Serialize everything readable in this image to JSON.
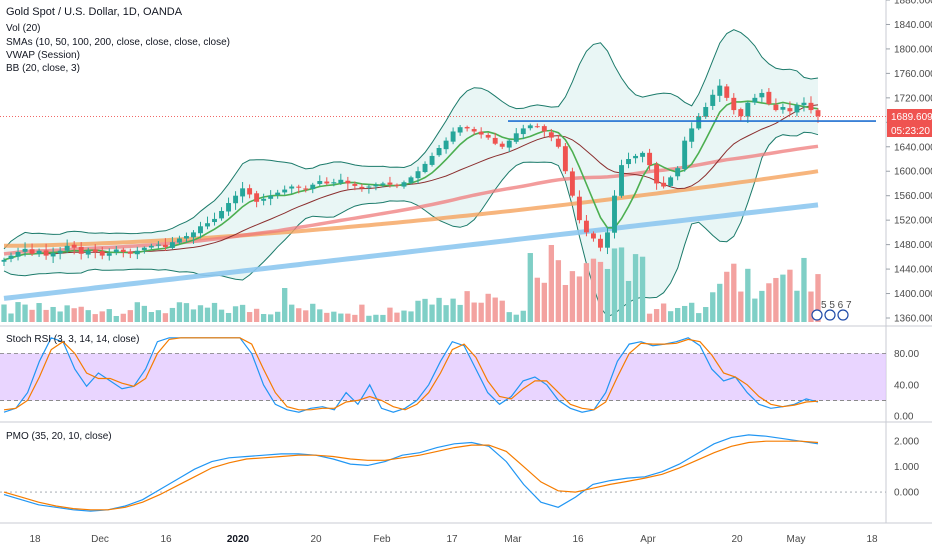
{
  "legend": {
    "title": "Gold Spot / U.S. Dollar, 1D, OANDA",
    "vol": "Vol (20)",
    "smas": "SMAs (10, 50, 100, 200, close, close, close, close)",
    "vwap": "VWAP (Session)",
    "bb": "BB (20, close, 3)"
  },
  "price_tag": {
    "value": "1689.609",
    "countdown": "05:23:20"
  },
  "events_label": "5 5 6 7",
  "rsi_pane": {
    "title": "Stoch RSI (3, 3, 14, 14, close)"
  },
  "pmo_pane": {
    "title": "PMO (35, 20, 10, close)"
  },
  "colors": {
    "up": "#26a69a",
    "down": "#ef5350",
    "bb": "#1b7a6a",
    "sma10": "#4caf50",
    "sma50": "#8b2f2f",
    "sma100": "#ef7b7b",
    "sma200": "#f5a25c",
    "vwap": "#8ec8f0",
    "resistance": "#1f6fd1",
    "rsi_band": "#e1c7ff",
    "k_line": "#2196f3",
    "d_line": "#f57c00"
  },
  "chart_data": [
    {
      "type": "candlestick",
      "title": "Gold Spot / U.S. Dollar, 1D, OANDA",
      "ylim": [
        1360,
        1880
      ],
      "y_ticks": [
        "1880.000",
        "1840.000",
        "1800.000",
        "1760.000",
        "1720.000",
        "1680.000",
        "1640.000",
        "1600.000",
        "1560.000",
        "1520.000",
        "1480.000",
        "1440.000",
        "1400.000",
        "1360.000"
      ],
      "x_ticks": [
        "18",
        "Dec",
        "16",
        "2020",
        "20",
        "Feb",
        "17",
        "Mar",
        "16",
        "Apr",
        "20",
        "May",
        "18"
      ],
      "resistance_level": 1682,
      "last_price": 1689.609,
      "close_path": [
        1455,
        1462,
        1468,
        1473,
        1465,
        1470,
        1462,
        1466,
        1470,
        1478,
        1475,
        1465,
        1470,
        1468,
        1462,
        1466,
        1472,
        1468,
        1465,
        1470,
        1475,
        1478,
        1480,
        1476,
        1484,
        1490,
        1494,
        1500,
        1510,
        1515,
        1522,
        1535,
        1548,
        1560,
        1572,
        1562,
        1550,
        1555,
        1560,
        1565,
        1570,
        1575,
        1573,
        1570,
        1578,
        1584,
        1580,
        1582,
        1586,
        1580,
        1576,
        1572,
        1575,
        1578,
        1580,
        1578,
        1576,
        1582,
        1590,
        1600,
        1612,
        1625,
        1638,
        1650,
        1665,
        1672,
        1670,
        1665,
        1660,
        1655,
        1645,
        1640,
        1650,
        1662,
        1670,
        1675,
        1673,
        1665,
        1655,
        1640,
        1600,
        1560,
        1520,
        1500,
        1490,
        1475,
        1500,
        1560,
        1610,
        1620,
        1625,
        1630,
        1610,
        1580,
        1575,
        1590,
        1605,
        1650,
        1670,
        1690,
        1705,
        1725,
        1740,
        1720,
        1700,
        1690,
        1712,
        1720,
        1728,
        1710,
        1700,
        1705,
        1698,
        1708,
        1712,
        1700,
        1690
      ]
    },
    {
      "type": "line",
      "title": "Stoch RSI (3, 3, 14, 14, close)",
      "ylim": [
        -5,
        110
      ],
      "y_ticks": [
        "80.00",
        "40.00",
        "0.00"
      ],
      "band": [
        20,
        80
      ],
      "k_path": [
        5,
        10,
        30,
        70,
        100,
        95,
        60,
        38,
        55,
        45,
        35,
        38,
        60,
        95,
        100,
        100,
        100,
        100,
        100,
        100,
        100,
        80,
        40,
        15,
        8,
        5,
        10,
        12,
        8,
        30,
        15,
        40,
        10,
        5,
        10,
        20,
        40,
        70,
        95,
        90,
        60,
        30,
        15,
        25,
        45,
        50,
        40,
        20,
        10,
        5,
        8,
        30,
        70,
        92,
        95,
        90,
        92,
        95,
        100,
        90,
        60,
        45,
        50,
        30,
        15,
        10,
        12,
        15,
        22,
        18
      ],
      "d_path": [
        8,
        10,
        20,
        50,
        85,
        95,
        80,
        55,
        48,
        48,
        42,
        38,
        48,
        80,
        98,
        100,
        100,
        100,
        100,
        100,
        100,
        92,
        60,
        30,
        12,
        8,
        8,
        10,
        10,
        18,
        20,
        25,
        20,
        12,
        8,
        15,
        30,
        55,
        85,
        92,
        75,
        45,
        25,
        22,
        35,
        45,
        45,
        30,
        15,
        10,
        8,
        18,
        50,
        80,
        93,
        92,
        92,
        93,
        98,
        95,
        78,
        55,
        50,
        40,
        25,
        15,
        12,
        14,
        18,
        19
      ]
    },
    {
      "type": "line",
      "title": "PMO (35, 20, 10, close)",
      "ylim": [
        -1.1,
        2.6
      ],
      "y_ticks": [
        "2.000",
        "1.000",
        "0.000"
      ],
      "pmo_path": [
        -0.1,
        -0.3,
        -0.5,
        -0.6,
        -0.7,
        -0.75,
        -0.7,
        -0.55,
        -0.3,
        0.1,
        0.5,
        0.9,
        1.2,
        1.35,
        1.4,
        1.45,
        1.5,
        1.5,
        1.45,
        1.3,
        1.1,
        1.05,
        1.2,
        1.45,
        1.55,
        1.75,
        1.9,
        1.95,
        1.8,
        1.2,
        0.3,
        -0.4,
        -0.6,
        -0.2,
        0.3,
        0.45,
        0.55,
        0.6,
        0.8,
        1.1,
        1.5,
        1.9,
        2.15,
        2.25,
        2.2,
        2.1,
        2.0,
        1.9
      ],
      "signal_path": [
        0.0,
        -0.2,
        -0.4,
        -0.55,
        -0.65,
        -0.7,
        -0.7,
        -0.6,
        -0.4,
        -0.1,
        0.25,
        0.6,
        0.95,
        1.15,
        1.3,
        1.35,
        1.4,
        1.45,
        1.45,
        1.4,
        1.3,
        1.25,
        1.25,
        1.35,
        1.45,
        1.6,
        1.75,
        1.85,
        1.85,
        1.6,
        1.0,
        0.4,
        0.05,
        0.0,
        0.15,
        0.3,
        0.42,
        0.55,
        0.7,
        0.95,
        1.25,
        1.55,
        1.8,
        1.95,
        2.0,
        2.0,
        2.0,
        1.95
      ]
    }
  ]
}
